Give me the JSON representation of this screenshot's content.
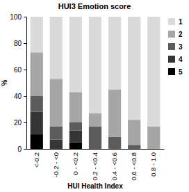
{
  "chart_data": {
    "type": "bar",
    "title": "HUI3 Emotion score",
    "x_label": "HUI Health Index",
    "y_label": "%",
    "categories": [
      "<-0.2",
      "-0.2 - <0",
      "0 - <0.2",
      "0.2 - <0.4",
      "0.4 - <0.6",
      "0.6 - <0.8",
      "0.8 - 1.0"
    ],
    "series": [
      {
        "name": "1",
        "color": "#dadada",
        "values": [
          27,
          47,
          57,
          73,
          55,
          78,
          83
        ]
      },
      {
        "name": "2",
        "color": "#a6a6a6",
        "values": [
          33,
          36,
          23,
          10,
          36,
          19,
          17
        ]
      },
      {
        "name": "3",
        "color": "#5c5c5c",
        "values": [
          12,
          10,
          6,
          17,
          9,
          3,
          0
        ]
      },
      {
        "name": "4",
        "color": "#363636",
        "values": [
          17,
          7,
          9,
          0,
          0,
          0,
          0
        ]
      },
      {
        "name": "5",
        "color": "#000000",
        "values": [
          11,
          0,
          5,
          0,
          0,
          0,
          0
        ]
      }
    ],
    "stacked": true,
    "legend": "top-right",
    "grid": false,
    "ylim": [
      0,
      100
    ],
    "yticks": [
      0,
      20,
      40,
      60,
      80,
      100
    ]
  }
}
